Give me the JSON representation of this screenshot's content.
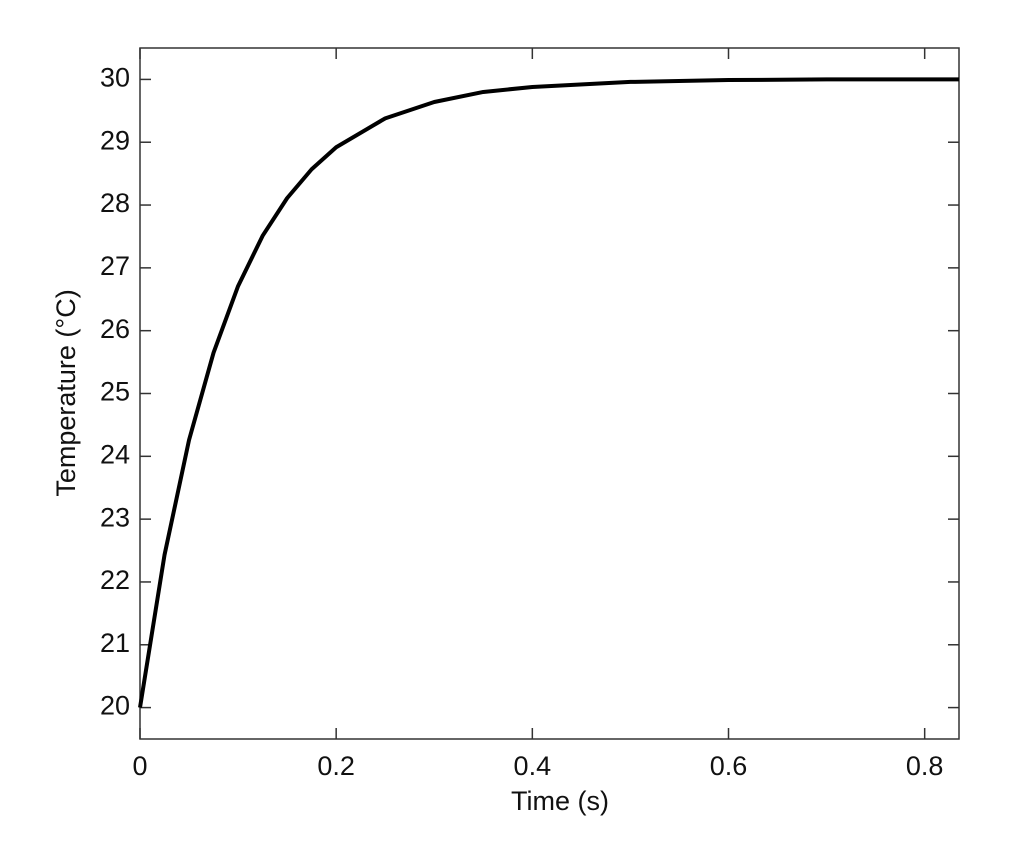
{
  "chart_data": {
    "type": "line",
    "xlabel": "Time (s)",
    "ylabel": "Temperature (°C)",
    "x": [
      0,
      0.025,
      0.05,
      0.075,
      0.1,
      0.125,
      0.15,
      0.175,
      0.2,
      0.25,
      0.3,
      0.35,
      0.4,
      0.5,
      0.6,
      0.7,
      0.835
    ],
    "series": [
      {
        "color": "#000000",
        "values": [
          20,
          22.43,
          24.26,
          25.65,
          26.71,
          27.51,
          28.11,
          28.57,
          28.92,
          29.38,
          29.64,
          29.8,
          29.88,
          29.96,
          29.99,
          30,
          30
        ]
      }
    ],
    "xlim": [
      0,
      0.835
    ],
    "ylim": [
      19.5,
      30.5
    ],
    "xticks": [
      0,
      0.2,
      0.4,
      0.6,
      0.8
    ],
    "yticks": [
      20,
      21,
      22,
      23,
      24,
      25,
      26,
      27,
      28,
      29,
      30
    ],
    "grid": false
  }
}
